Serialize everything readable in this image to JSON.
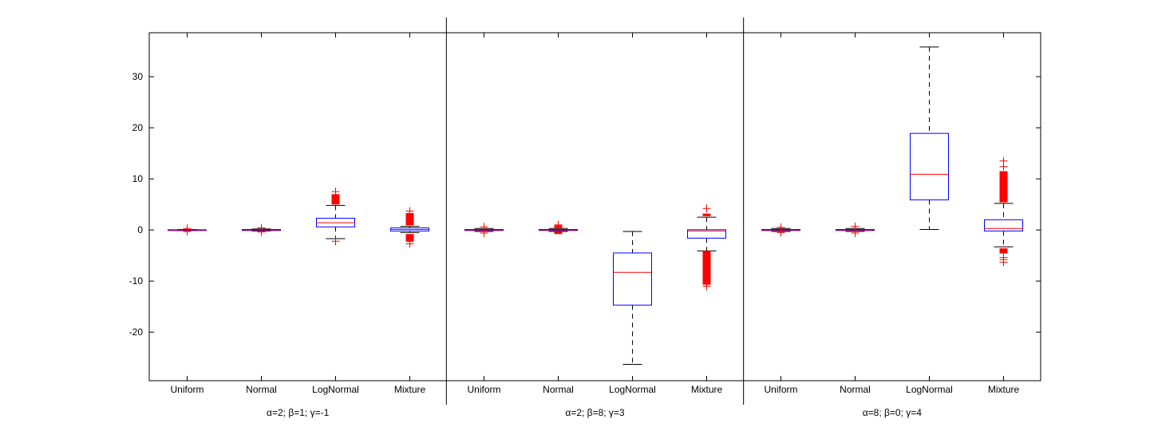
{
  "chart_data": {
    "type": "box",
    "title": "",
    "xlabel": "",
    "ylabel": "",
    "ylim": [
      -29.5,
      38.6
    ],
    "yticks": [
      -20,
      -10,
      0,
      10,
      20,
      30
    ],
    "grid": false,
    "colors": {
      "box": "#0000ff",
      "median": "#ff0000",
      "whisker": "#000000",
      "outlier": "#ff0000"
    },
    "groups": [
      {
        "label": "α=2; β=1; γ=-1",
        "boxes": [
          {
            "category": "Uniform",
            "q1": -0.05,
            "median": 0,
            "q3": 0.05,
            "whisker_low": -0.1,
            "whisker_high": 0.1,
            "outlier_bands": [],
            "outliers": [
              0.3,
              -0.3
            ]
          },
          {
            "category": "Normal",
            "q1": -0.1,
            "median": 0,
            "q3": 0.1,
            "whisker_low": -0.2,
            "whisker_high": 0.2,
            "outlier_bands": [],
            "outliers": [
              0.4,
              -0.4
            ]
          },
          {
            "category": "LogNormal",
            "q1": 0.6,
            "median": 1.4,
            "q3": 2.3,
            "whisker_low": -1.7,
            "whisker_high": 4.8,
            "outlier_bands": [
              [
                5.0,
                7.0
              ]
            ],
            "outliers": [
              7.5,
              -2.2
            ]
          },
          {
            "category": "Mixture",
            "q1": -0.2,
            "median": 0.1,
            "q3": 0.4,
            "whisker_low": -0.5,
            "whisker_high": 0.7,
            "outlier_bands": [
              [
                0.9,
                3.3
              ],
              [
                -2.3,
                -0.8
              ]
            ],
            "outliers": [
              3.7,
              -2.7
            ]
          }
        ]
      },
      {
        "label": "α=2; β=8; γ=3",
        "boxes": [
          {
            "category": "Uniform",
            "q1": -0.1,
            "median": 0,
            "q3": 0.1,
            "whisker_low": -0.3,
            "whisker_high": 0.3,
            "outlier_bands": [],
            "outliers": [
              0.6,
              -0.6
            ]
          },
          {
            "category": "Normal",
            "q1": -0.1,
            "median": 0,
            "q3": 0.1,
            "whisker_low": -0.3,
            "whisker_high": 0.3,
            "outlier_bands": [
              [
                0.4,
                0.9
              ],
              [
                -0.8,
                -0.4
              ]
            ],
            "outliers": [
              1.0
            ]
          },
          {
            "category": "LogNormal",
            "q1": -14.7,
            "median": -8.3,
            "q3": -4.5,
            "whisker_low": -26.3,
            "whisker_high": -0.3,
            "outlier_bands": [],
            "outliers": []
          },
          {
            "category": "Mixture",
            "q1": -1.6,
            "median": -0.2,
            "q3": 0.05,
            "whisker_low": -4.1,
            "whisker_high": 2.5,
            "outlier_bands": [
              [
                2.7,
                3.2
              ],
              [
                -10.7,
                -4.1
              ]
            ],
            "outliers": [
              4.2,
              -11.0
            ]
          }
        ]
      },
      {
        "label": "α=8; β=0; γ=4",
        "boxes": [
          {
            "category": "Uniform",
            "q1": -0.1,
            "median": 0,
            "q3": 0.1,
            "whisker_low": -0.3,
            "whisker_high": 0.3,
            "outlier_bands": [],
            "outliers": [
              0.5,
              -0.5
            ]
          },
          {
            "category": "Normal",
            "q1": -0.1,
            "median": 0,
            "q3": 0.1,
            "whisker_low": -0.3,
            "whisker_high": 0.3,
            "outlier_bands": [],
            "outliers": [
              0.7,
              -0.6
            ]
          },
          {
            "category": "LogNormal",
            "q1": 5.9,
            "median": 10.9,
            "q3": 18.9,
            "whisker_low": 0.1,
            "whisker_high": 35.8,
            "outlier_bands": [],
            "outliers": []
          },
          {
            "category": "Mixture",
            "q1": -0.2,
            "median": 0.3,
            "q3": 2.0,
            "whisker_low": -3.3,
            "whisker_high": 5.2,
            "outlier_bands": [
              [
                5.4,
                11.5
              ],
              [
                -4.6,
                -3.6
              ]
            ],
            "outliers": [
              12.4,
              13.5,
              -5.4,
              -5.8,
              -6.3
            ]
          }
        ]
      }
    ]
  }
}
